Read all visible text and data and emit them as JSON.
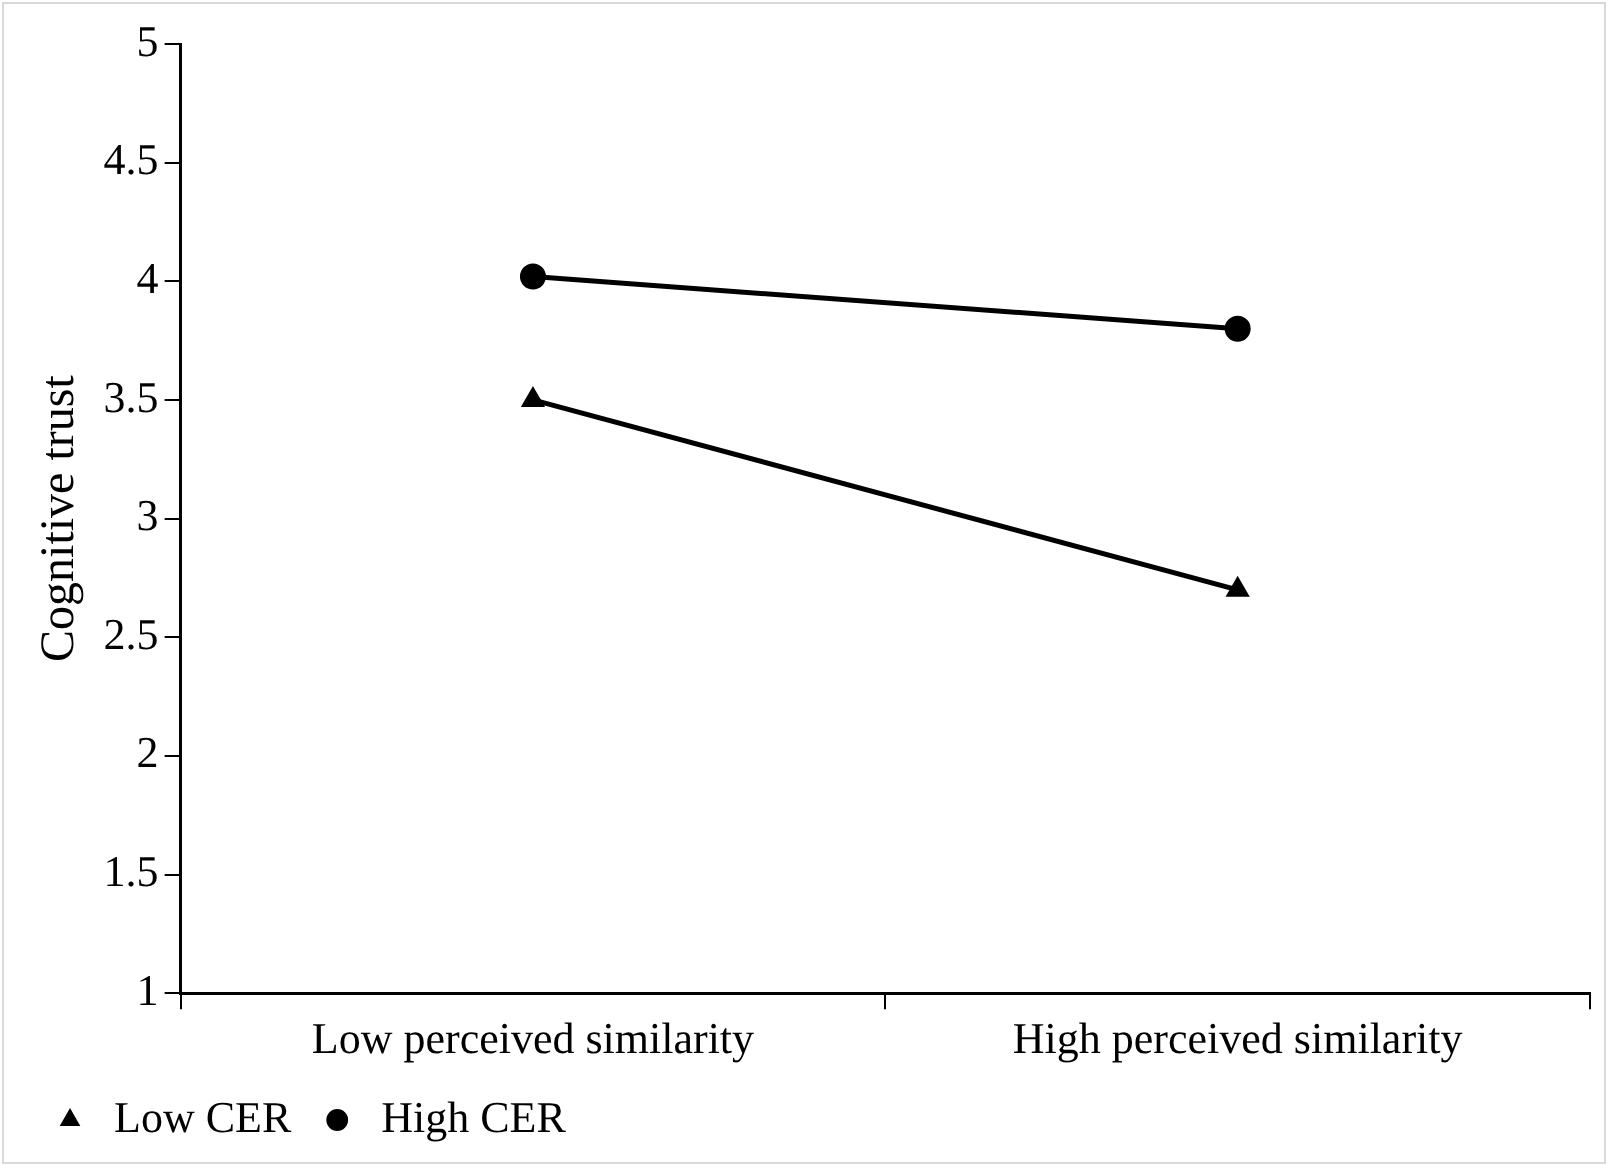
{
  "chart_data": {
    "type": "line",
    "ylabel": "Cognitive trust",
    "categories": [
      "Low perceived similarity",
      "High perceived similarity"
    ],
    "series": [
      {
        "name": "Low CER",
        "color": "#000000",
        "marker": "triangle",
        "values": [
          3.5,
          2.7
        ]
      },
      {
        "name": "High CER",
        "color": "#000000",
        "marker": "circle",
        "values": [
          4.02,
          3.8
        ]
      }
    ],
    "ylim": [
      1,
      5
    ],
    "yticks": [
      1,
      1.5,
      2,
      2.5,
      3,
      3.5,
      4,
      4.5,
      5
    ],
    "grid": false,
    "legend": "bottom",
    "line_style": "solid"
  }
}
